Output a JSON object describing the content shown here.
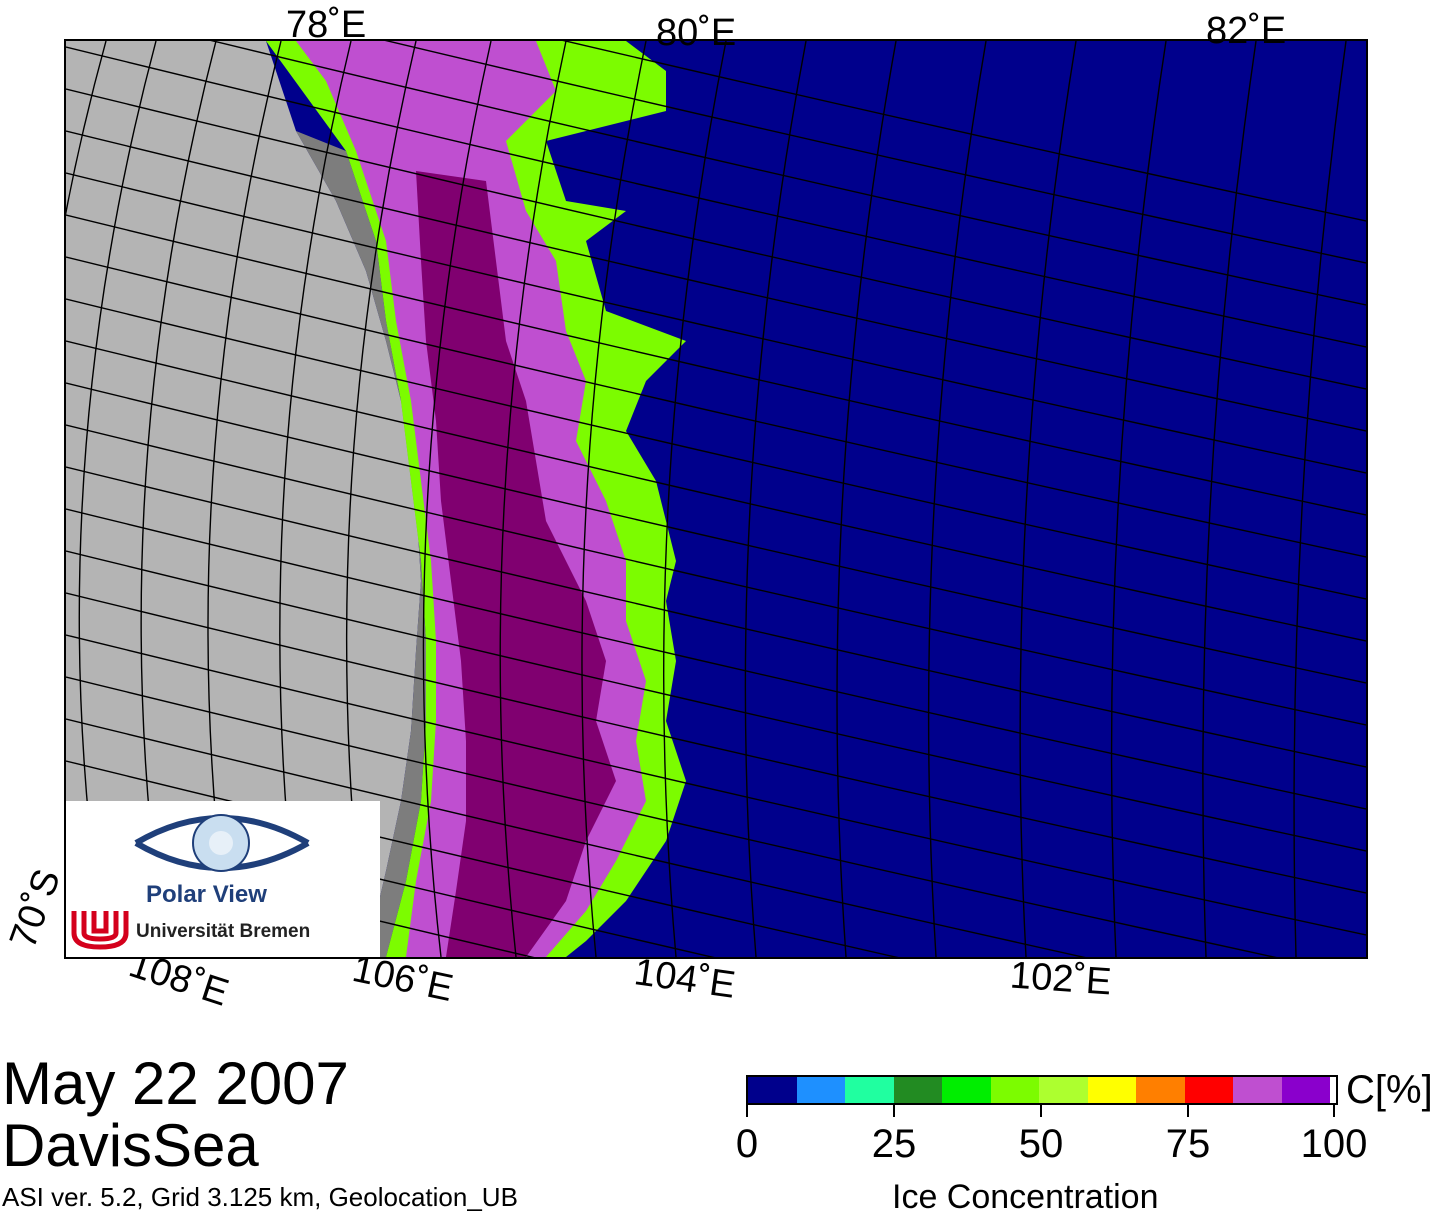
{
  "map": {
    "top_longitude_labels": [
      "78˚E",
      "80˚E",
      "82˚E"
    ],
    "bottom_longitude_labels": [
      "108˚E",
      "106˚E",
      "104˚E",
      "102˚E"
    ],
    "latitude_label": "70˚S",
    "colors": {
      "open_water": "#00008c",
      "land": "#b4b4b4",
      "ice_shelf": "#7d7d7d",
      "high_ice": "#800070",
      "grid_line": "#000000"
    }
  },
  "logo": {
    "name": "Polar View",
    "university": "Universität Bremen",
    "icon": "eye-globe-icon"
  },
  "footer": {
    "date": "May 22 2007",
    "region": "DavisSea",
    "info": "ASI ver. 5.2,  Grid 3.125 km, Geolocation_UB"
  },
  "colorbar": {
    "unit": "C[%]",
    "title": "Ice Concentration",
    "tick_labels": [
      "0",
      "25",
      "50",
      "75",
      "100"
    ],
    "range": [
      0,
      100
    ],
    "colors": [
      "#00008c",
      "#1e90ff",
      "#20ffa0",
      "#228b22",
      "#00ee00",
      "#7cfc00",
      "#adff2f",
      "#ffff00",
      "#ff7f00",
      "#ff0000",
      "#bf4fd0",
      "#8a00cc",
      "#ffffff"
    ]
  }
}
